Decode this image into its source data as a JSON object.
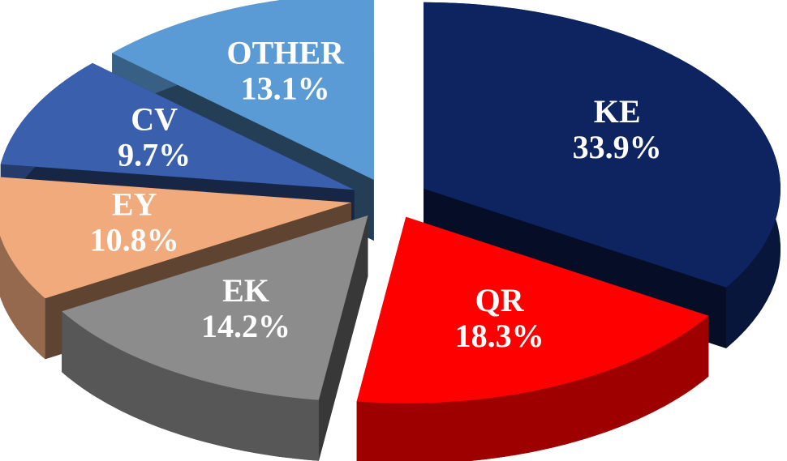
{
  "chart_data": {
    "type": "pie",
    "categories": [
      "KE",
      "QR",
      "EK",
      "EY",
      "CV",
      "OTHER"
    ],
    "values": [
      33.9,
      18.3,
      14.2,
      10.8,
      9.7,
      13.1
    ],
    "value_labels": [
      "33.9%",
      "18.3%",
      "14.2%",
      "10.8%",
      "9.7%",
      "13.1%"
    ],
    "colors": [
      "#0e2461",
      "#ff0000",
      "#8c8c8c",
      "#f0aa7c",
      "#3a5fad",
      "#5b9bd5"
    ]
  }
}
